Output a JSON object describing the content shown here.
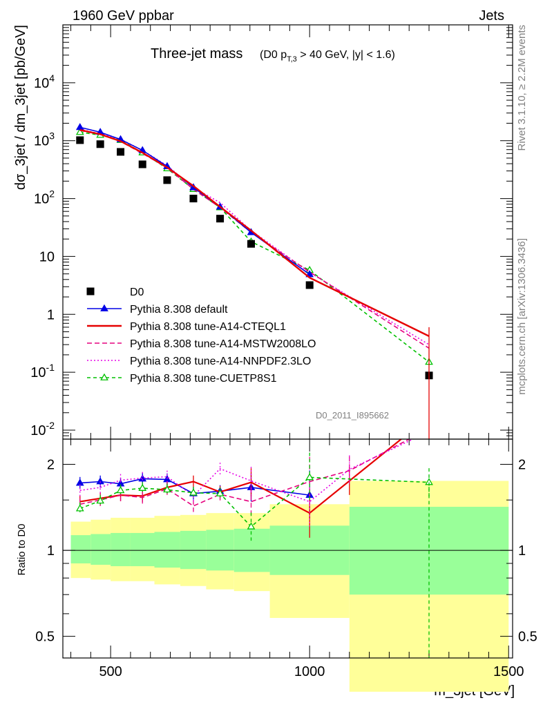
{
  "header": {
    "energy": "1960 GeV ppbar",
    "process": "Jets",
    "title_main": "Three-jet mass",
    "title_cut": "(D0 p_T,3 > 40 GeV, |y| < 1.6)",
    "analysis_id": "D0_2011_I895662",
    "side_top": "Rivet 3.1.10, ≥ 2.2M events",
    "side_bottom": "mcplots.cern.ch [arXiv:1306.3436]"
  },
  "chart_data": [
    {
      "type": "line",
      "panel": "main",
      "xlabel": "m_3jet [GeV]",
      "ylabel": "dσ_3jet / dm_3jet [pb/GeV]",
      "xlim": [
        380,
        1510
      ],
      "ylim": [
        0.007,
        100000
      ],
      "yscale": "log",
      "yticks": [
        {
          "v": 0.01,
          "m": "10",
          "e": "-2"
        },
        {
          "v": 0.1,
          "m": "10",
          "e": "-1"
        },
        {
          "v": 1,
          "m": "1",
          "e": ""
        },
        {
          "v": 10,
          "m": "10",
          "e": ""
        },
        {
          "v": 100,
          "m": "10",
          "e": "2"
        },
        {
          "v": 1000,
          "m": "10",
          "e": "3"
        },
        {
          "v": 10000,
          "m": "10",
          "e": "4"
        }
      ],
      "legend_position": "bottom-left",
      "series": [
        {
          "name": "D0",
          "kind": "data",
          "color": "#000000",
          "x": [
            423,
            474,
            525,
            580,
            642,
            708,
            775,
            853,
            1000,
            1300
          ],
          "y": [
            1020,
            870,
            640,
            390,
            208,
            100,
            45,
            16.5,
            3.2,
            0.088
          ]
        },
        {
          "name": "Pythia 8.308 default",
          "kind": "markline",
          "marker": "triangle-filled",
          "dash": "",
          "color": "#0000e6",
          "x": [
            423,
            474,
            525,
            580,
            642,
            708,
            775,
            853,
            1000
          ],
          "y": [
            1700,
            1400,
            1050,
            680,
            360,
            155,
            72,
            26,
            4.9
          ]
        },
        {
          "name": "Pythia 8.308 tune-A14-CTEQL1",
          "kind": "line",
          "dash": "",
          "color": "#e60000",
          "x": [
            423,
            474,
            525,
            580,
            642,
            708,
            775,
            853,
            1000,
            1300
          ],
          "y": [
            1530,
            1290,
            980,
            620,
            345,
            165,
            72,
            28,
            4.3,
            0.42
          ]
        },
        {
          "name": "Pythia 8.308 tune-A14-MSTW2008LO",
          "kind": "line",
          "dash": "7,4",
          "color": "#e6007e",
          "x": [
            423,
            474,
            525,
            580,
            642,
            708,
            775,
            853,
            1000,
            1300
          ],
          "y": [
            1500,
            1280,
            970,
            600,
            340,
            145,
            70,
            26,
            5.4,
            0.26
          ]
        },
        {
          "name": "Pythia 8.308 tune-A14-NNPDF2.3LO",
          "kind": "line",
          "dash": "2,3",
          "color": "#e600e6",
          "x": [
            423,
            474,
            525,
            580,
            642,
            708,
            775,
            853,
            1000,
            1300
          ],
          "y": [
            1580,
            1310,
            1060,
            680,
            370,
            155,
            85,
            28,
            5.3,
            0.3
          ]
        },
        {
          "name": "Pythia 8.308 tune-CUETP8S1",
          "kind": "markline",
          "marker": "triangle-open",
          "dash": "5,4",
          "color": "#00c000",
          "x": [
            423,
            474,
            525,
            580,
            642,
            708,
            775,
            853,
            1000,
            1300
          ],
          "y": [
            1400,
            1250,
            1020,
            620,
            330,
            145,
            70,
            18,
            5.8,
            0.15
          ]
        }
      ]
    },
    {
      "type": "line",
      "panel": "ratio",
      "ylabel": "Ratio to D0",
      "xlabel": "m_3jet [GeV]",
      "xlim": [
        380,
        1510
      ],
      "ylim": [
        0.42,
        2.45
      ],
      "yscale": "log",
      "yticks": [
        0.5,
        1,
        2
      ],
      "xticks": [
        500,
        1000,
        1500
      ],
      "bands": {
        "bin_edges": [
          400,
          450,
          500,
          550,
          610,
          675,
          740,
          810,
          900,
          1100,
          1500
        ],
        "outer": [
          [
            0.8,
            1.26
          ],
          [
            0.79,
            1.28
          ],
          [
            0.78,
            1.3
          ],
          [
            0.78,
            1.3
          ],
          [
            0.76,
            1.32
          ],
          [
            0.75,
            1.33
          ],
          [
            0.73,
            1.35
          ],
          [
            0.72,
            1.35
          ],
          [
            0.58,
            1.45
          ],
          [
            0.32,
            1.75
          ]
        ],
        "inner": [
          [
            0.9,
            1.13
          ],
          [
            0.89,
            1.14
          ],
          [
            0.88,
            1.15
          ],
          [
            0.88,
            1.15
          ],
          [
            0.87,
            1.16
          ],
          [
            0.86,
            1.17
          ],
          [
            0.85,
            1.18
          ],
          [
            0.84,
            1.19
          ],
          [
            0.82,
            1.22
          ],
          [
            0.7,
            1.42
          ]
        ],
        "outer_color": "#ffff99",
        "inner_color": "#99ff99"
      },
      "series": [
        {
          "name": "Pythia 8.308 default",
          "color": "#0000e6",
          "dash": "",
          "marker": "triangle-filled",
          "x": [
            423,
            474,
            525,
            580,
            642,
            708,
            775,
            853,
            1000
          ],
          "y": [
            1.72,
            1.74,
            1.71,
            1.78,
            1.77,
            1.58,
            1.61,
            1.66,
            1.56
          ]
        },
        {
          "name": "Pythia 8.308 tune-A14-CTEQL1",
          "color": "#e60000",
          "dash": "",
          "x": [
            423,
            474,
            525,
            580,
            642,
            708,
            775,
            853,
            1000,
            1100,
            1230
          ],
          "y": [
            1.48,
            1.52,
            1.56,
            1.55,
            1.66,
            1.74,
            1.6,
            1.73,
            1.35,
            1.75,
            2.45
          ]
        },
        {
          "name": "Pythia 8.308 tune-A14-MSTW2008LO",
          "color": "#e6007e",
          "dash": "7,4",
          "x": [
            423,
            474,
            525,
            580,
            642,
            708,
            775,
            853,
            1000,
            1100,
            1250
          ],
          "y": [
            1.45,
            1.5,
            1.56,
            1.53,
            1.64,
            1.43,
            1.57,
            1.48,
            1.74,
            1.9,
            2.45
          ]
        },
        {
          "name": "Pythia 8.308 tune-A14-NNPDF2.3LO",
          "color": "#e600e6",
          "dash": "2,3",
          "x": [
            423,
            474,
            525,
            580,
            642,
            708,
            775,
            853,
            1000,
            1100,
            1260
          ],
          "y": [
            1.62,
            1.66,
            1.76,
            1.79,
            1.81,
            1.55,
            1.93,
            1.75,
            1.48,
            1.92,
            2.45
          ]
        },
        {
          "name": "Pythia 8.308 tune-CUETP8S1",
          "color": "#00c000",
          "dash": "5,4",
          "marker": "triangle-open",
          "x": [
            423,
            474,
            525,
            580,
            642,
            708,
            775,
            853,
            1000,
            1300
          ],
          "y": [
            1.4,
            1.49,
            1.62,
            1.65,
            1.63,
            1.59,
            1.58,
            1.21,
            1.8,
            1.73
          ]
        }
      ]
    }
  ]
}
